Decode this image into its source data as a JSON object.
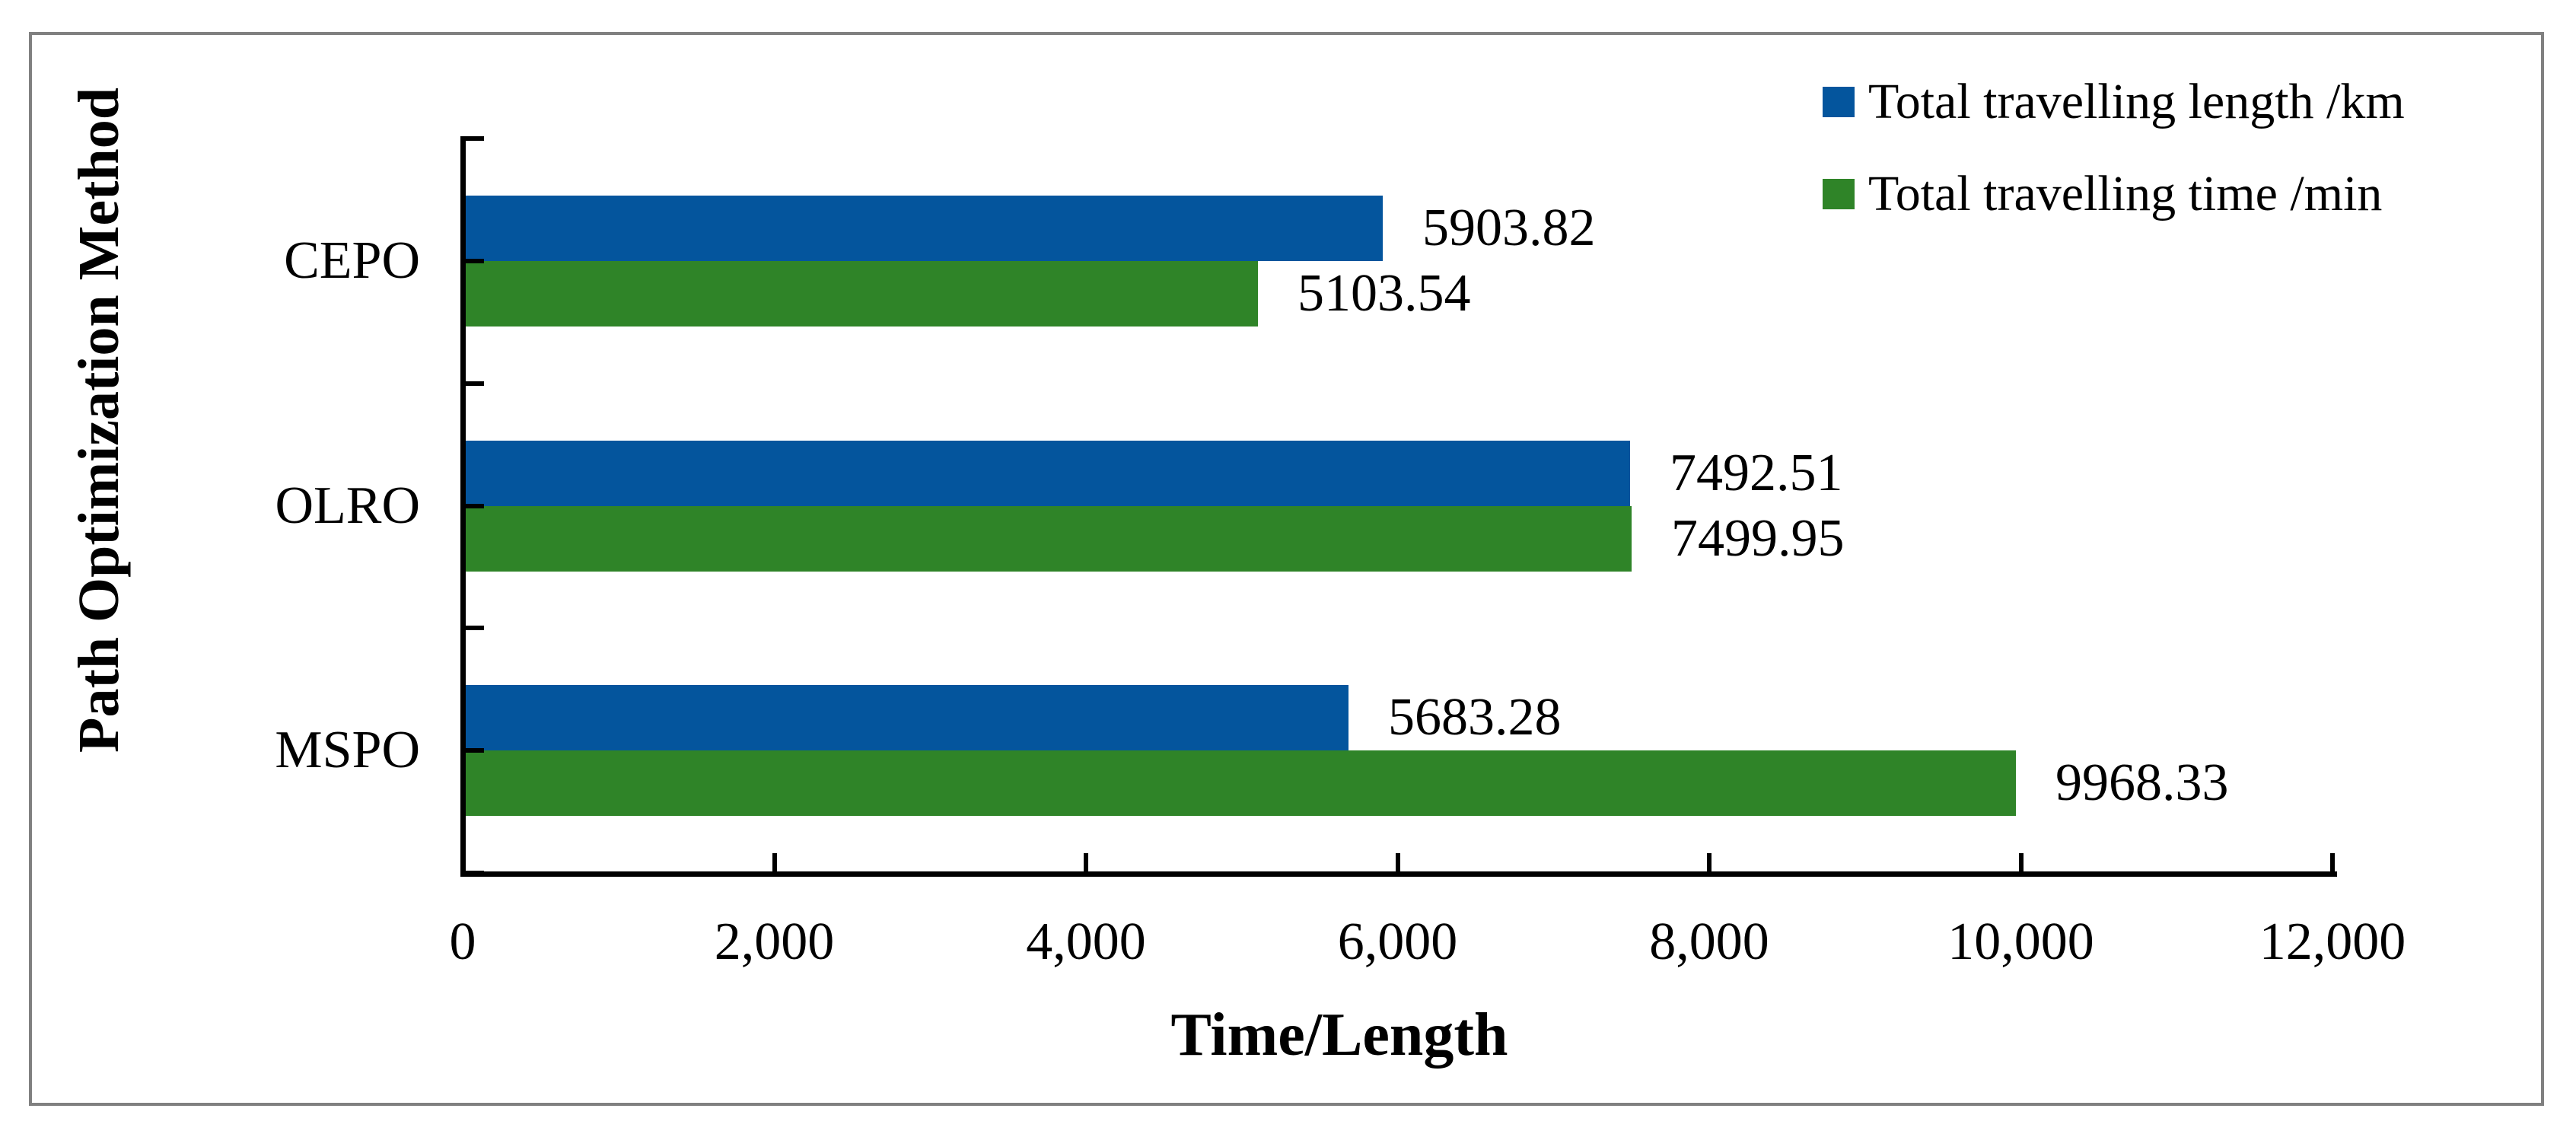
{
  "window": {
    "background": "#ffffff",
    "border_color": "#808080"
  },
  "chart_data": {
    "type": "bar",
    "orientation": "horizontal",
    "title": "",
    "xlabel": "Time/Length",
    "ylabel": "Path Optimization Method",
    "categories": [
      "CEPO",
      "OLRO",
      "MSPO"
    ],
    "series": [
      {
        "name": "Total travelling length /km",
        "color": "#04559D",
        "values": [
          5903.82,
          7492.51,
          5683.28
        ],
        "labels": [
          "5903.82",
          "7492.51",
          "5683.28"
        ]
      },
      {
        "name": "Total travelling time /min",
        "color": "#2F8428",
        "values": [
          5103.54,
          7499.95,
          9968.33
        ],
        "labels": [
          "5103.54",
          "7499.95",
          "9968.33"
        ]
      }
    ],
    "xlim": [
      0,
      12000
    ],
    "x_tick_values": [
      0,
      2000,
      4000,
      6000,
      8000,
      10000,
      12000
    ],
    "x_tick_labels": [
      "0",
      "2,000",
      "4,000",
      "6,000",
      "8,000",
      "10,000",
      "12,000"
    ],
    "grid": false,
    "legend_position": "top-right",
    "axis_color": "#000000",
    "label_color": "#000000"
  }
}
